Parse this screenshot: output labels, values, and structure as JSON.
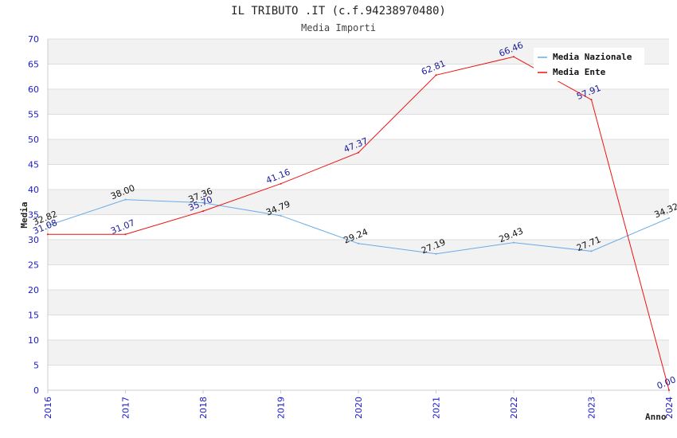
{
  "chart_data": {
    "type": "line",
    "title": "IL TRIBUTO .IT (c.f.94238970480)",
    "subtitle": "Media Importi",
    "xlabel": "Anno",
    "ylabel": "Media",
    "ylim": [
      0,
      70
    ],
    "yticks": [
      "0",
      "5",
      "10",
      "15",
      "20",
      "25",
      "30",
      "35",
      "40",
      "45",
      "50",
      "55",
      "60",
      "65",
      "70"
    ],
    "categories": [
      "2016",
      "2017",
      "2018",
      "2019",
      "2020",
      "2021",
      "2022",
      "2023",
      "2024"
    ],
    "grid": "horizontal, alternating bands",
    "legend_position": "top-right",
    "series": [
      {
        "name": "Media Nazionale",
        "color": "#6aaae8",
        "label_color": "#111111",
        "values": [
          32.82,
          38.0,
          37.36,
          34.79,
          29.24,
          27.19,
          29.43,
          27.71,
          34.32
        ],
        "labels": [
          "32.82",
          "38.00",
          "37.36",
          "34.79",
          "29.24",
          "27.19",
          "29.43",
          "27.71",
          "34.32"
        ]
      },
      {
        "name": "Media Ente",
        "color": "#ee1111",
        "label_color": "#1a1a99",
        "values": [
          31.08,
          31.07,
          35.7,
          41.16,
          47.37,
          62.81,
          66.46,
          57.91,
          0.0
        ],
        "labels": [
          "31.08",
          "31.07",
          "35.70",
          "41.16",
          "47.37",
          "62.81",
          "66.46",
          "57.91",
          "0.00"
        ]
      }
    ]
  }
}
